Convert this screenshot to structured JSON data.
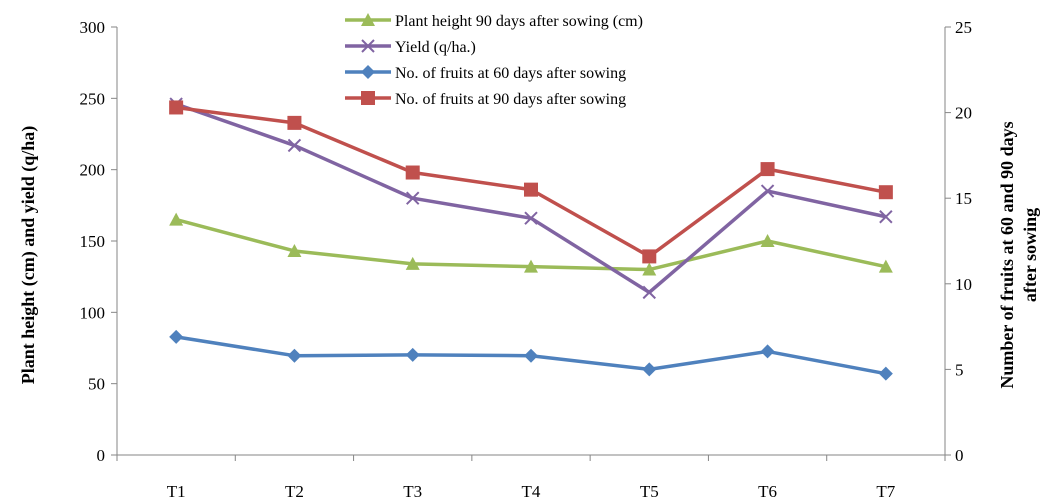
{
  "chart_data": {
    "type": "line",
    "categories": [
      "T1",
      "T2",
      "T3",
      "T4",
      "T5",
      "T6",
      "T7"
    ],
    "ylabel": "Plant height  (cm) and yield (q/ha)",
    "y2label_line1": "Number of fruits at 60 and 90 days",
    "y2label_line2": "after sowing",
    "ylim": [
      0,
      300
    ],
    "y2lim": [
      0,
      25
    ],
    "yticks": [
      "0",
      "50",
      "100",
      "150",
      "200",
      "250",
      "300"
    ],
    "y2ticks": [
      "0",
      "5",
      "10",
      "15",
      "20",
      "25"
    ],
    "grid": false,
    "legend_position": "top-center",
    "series": [
      {
        "name": "Plant height 90 days after sowing (cm)",
        "axis": "left",
        "marker": "triangle",
        "color": "#9BBB59",
        "values": [
          165,
          143,
          134,
          132,
          130,
          150,
          132
        ]
      },
      {
        "name": "Yield (q/ha.)",
        "axis": "left",
        "marker": "x",
        "color": "#8064A2",
        "values": [
          246,
          217,
          180,
          166,
          114,
          185,
          167
        ]
      },
      {
        "name": "No. of fruits at 60 days after sowing",
        "axis": "right",
        "marker": "diamond",
        "color": "#4F81BD",
        "values": [
          6.9,
          5.8,
          5.85,
          5.8,
          5.0,
          6.05,
          4.75
        ]
      },
      {
        "name": "No. of fruits at 90 days after sowing",
        "axis": "right",
        "marker": "square",
        "color": "#C0504D",
        "values": [
          20.3,
          19.4,
          16.5,
          15.5,
          11.6,
          16.7,
          15.35
        ]
      }
    ]
  }
}
